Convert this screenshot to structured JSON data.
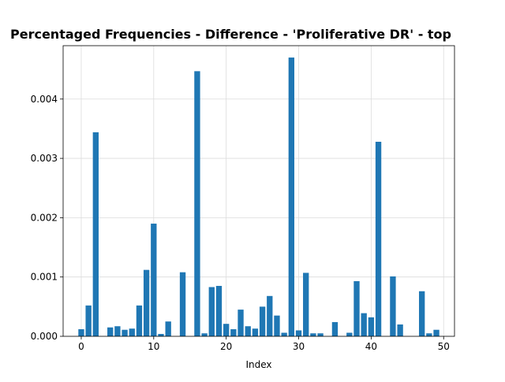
{
  "chart_data": {
    "type": "bar",
    "title": "Percentaged Frequencies - Difference - 'Proliferative DR' - top",
    "xlabel": "Index",
    "ylabel": "",
    "bar_color": "#1f77b4",
    "grid": true,
    "xlim": [
      -2.5,
      51.5
    ],
    "ylim": [
      0,
      0.0049
    ],
    "xticks": [
      0,
      10,
      20,
      30,
      40,
      50
    ],
    "xtick_labels": [
      "0",
      "10",
      "20",
      "30",
      "40",
      "50"
    ],
    "yticks": [
      0,
      0.001,
      0.002,
      0.003,
      0.004
    ],
    "ytick_labels": [
      "0.000",
      "0.001",
      "0.002",
      "0.003",
      "0.004"
    ],
    "x": [
      0,
      1,
      2,
      3,
      4,
      5,
      6,
      7,
      8,
      9,
      10,
      11,
      12,
      13,
      14,
      15,
      16,
      17,
      18,
      19,
      20,
      21,
      22,
      23,
      24,
      25,
      26,
      27,
      28,
      29,
      30,
      31,
      32,
      33,
      34,
      35,
      36,
      37,
      38,
      39,
      40,
      41,
      42,
      43,
      44,
      45,
      46,
      47,
      48,
      49
    ],
    "values": [
      0.00012,
      0.00052,
      0.00344,
      0.0,
      0.00015,
      0.00017,
      0.00011,
      0.00013,
      0.00052,
      0.00112,
      0.0019,
      4e-05,
      0.00025,
      0.0,
      0.00108,
      0.0,
      0.00447,
      5e-05,
      0.00083,
      0.00085,
      0.00021,
      0.00012,
      0.00045,
      0.00017,
      0.00013,
      0.0005,
      0.00068,
      0.00035,
      6e-05,
      0.0047,
      0.0001,
      0.00107,
      5e-05,
      5e-05,
      0.0,
      0.00024,
      0.0,
      6e-05,
      0.00093,
      0.00039,
      0.00032,
      0.00328,
      0.0,
      0.00101,
      0.0002,
      0.0,
      0.0,
      0.00076,
      5e-05,
      0.00011
    ]
  }
}
